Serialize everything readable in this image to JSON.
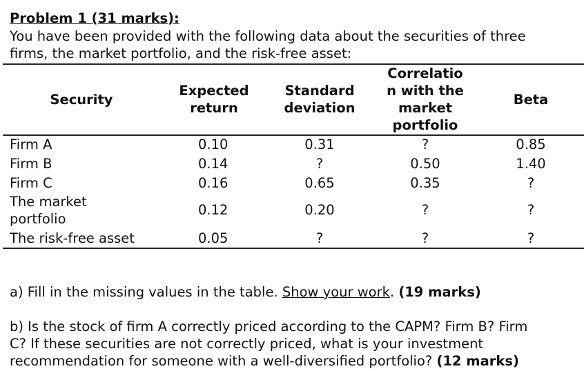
{
  "title": "Problem 1 (31 marks):",
  "intro": [
    "You have been provided with the following data about the securities of three",
    "firms, the market portfolio, and the risk-free asset:"
  ],
  "table": {
    "headers": [
      "Security",
      "Expected return",
      "Standard deviation",
      "Correlation with the market portfolio",
      "Beta"
    ],
    "header_lines": {
      "expected": [
        "Expected",
        "return"
      ],
      "std": [
        "Standard",
        "deviation"
      ],
      "corr": [
        "Correlatio",
        "n with the",
        "market",
        "portfolio"
      ]
    },
    "rows": [
      {
        "security": "Firm A",
        "expected": "0.10",
        "std": "0.31",
        "corr": "?",
        "beta": "0.85"
      },
      {
        "security": "Firm B",
        "expected": "0.14",
        "std": "?",
        "corr": "0.50",
        "beta": "1.40"
      },
      {
        "security": "Firm C",
        "expected": "0.16",
        "std": "0.65",
        "corr": "0.35",
        "beta": "?"
      },
      {
        "security": "The market portfolio",
        "security_lines": [
          "The market",
          "portfolio"
        ],
        "expected": "0.12",
        "std": "0.20",
        "corr": "?",
        "beta": "?"
      },
      {
        "security": "The risk-free asset",
        "expected": "0.05",
        "std": "?",
        "corr": "?",
        "beta": "?"
      }
    ]
  },
  "question_a": {
    "prefix": "a) Fill in the missing values in the table. ",
    "underlined": "Show your work",
    "suffix": ". ",
    "marks": "(19 marks)"
  },
  "question_b": {
    "lines": [
      "b) Is the stock of firm A correctly priced according to the CAPM? Firm B? Firm",
      "C? If these securities are not correctly priced, what is your investment",
      "recommendation for someone with a well-diversified portfolio? "
    ],
    "marks": "(12 marks)"
  }
}
